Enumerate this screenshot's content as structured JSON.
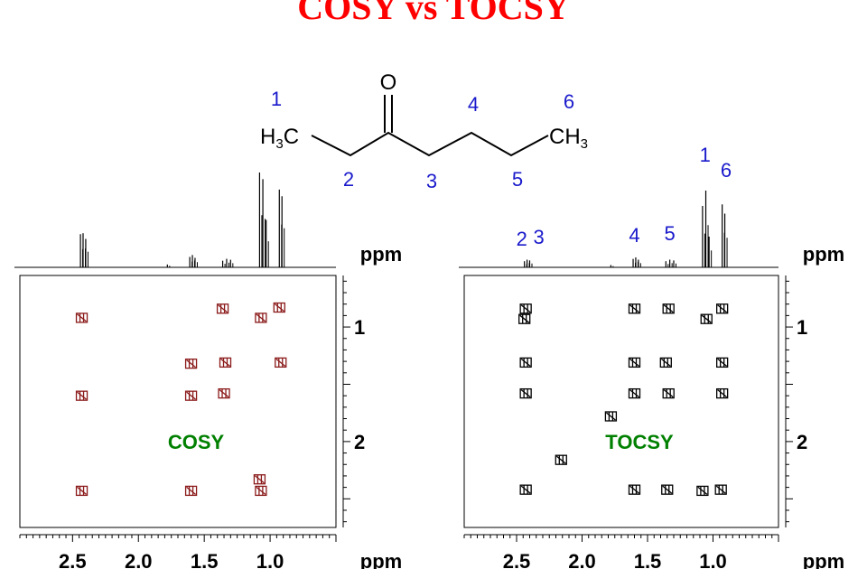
{
  "title": "COSY vs TOCSY",
  "molecule": {
    "atoms": {
      "oxygen": "O",
      "left_methyl": "H3C",
      "right_methyl": "CH3"
    },
    "position_numbers": [
      "1",
      "2",
      "3",
      "4",
      "5",
      "6"
    ]
  },
  "colors": {
    "title": "#ff0000",
    "position_numbers": "#1a1acc",
    "plot_labels": "#008000",
    "cosy_peaks": "#8b1a1a",
    "tocsy_peaks": "#000000"
  },
  "chart_data": [
    {
      "type": "scatter",
      "label": "COSY",
      "xlabel": "ppm",
      "ylabel": "ppm",
      "xticks": [
        "2.5",
        "2.0",
        "1.5",
        "1.0"
      ],
      "yticks": [
        "1",
        "2"
      ],
      "xlim": [
        2.9,
        0.5
      ],
      "ylim": [
        0.55,
        2.75
      ],
      "projection_peaks": [
        {
          "ppm": 2.44,
          "h": 0.35
        },
        {
          "ppm": 2.42,
          "h": 0.36
        },
        {
          "ppm": 2.4,
          "h": 0.3
        },
        {
          "ppm": 1.78,
          "h": 0.03
        },
        {
          "ppm": 1.61,
          "h": 0.11
        },
        {
          "ppm": 1.59,
          "h": 0.13
        },
        {
          "ppm": 1.57,
          "h": 0.1
        },
        {
          "ppm": 1.36,
          "h": 0.07
        },
        {
          "ppm": 1.33,
          "h": 0.09
        },
        {
          "ppm": 1.3,
          "h": 0.08
        },
        {
          "ppm": 1.08,
          "h": 1.0
        },
        {
          "ppm": 1.055,
          "h": 0.93
        },
        {
          "ppm": 1.03,
          "h": 0.5
        },
        {
          "ppm": 0.93,
          "h": 0.82
        },
        {
          "ppm": 0.91,
          "h": 0.75
        }
      ],
      "cross_peaks": [
        {
          "x": 2.43,
          "y": 0.92
        },
        {
          "x": 2.43,
          "y": 1.6
        },
        {
          "x": 2.43,
          "y": 2.43
        },
        {
          "x": 1.6,
          "y": 1.32
        },
        {
          "x": 1.6,
          "y": 1.6
        },
        {
          "x": 1.6,
          "y": 2.43
        },
        {
          "x": 1.36,
          "y": 0.84
        },
        {
          "x": 1.34,
          "y": 1.31
        },
        {
          "x": 1.35,
          "y": 1.58
        },
        {
          "x": 1.07,
          "y": 0.92
        },
        {
          "x": 1.07,
          "y": 2.43
        },
        {
          "x": 1.08,
          "y": 2.33
        },
        {
          "x": 0.93,
          "y": 0.83
        },
        {
          "x": 0.92,
          "y": 1.31
        }
      ]
    },
    {
      "type": "scatter",
      "label": "TOCSY",
      "xlabel": "ppm",
      "ylabel": "ppm",
      "xticks": [
        "2.5",
        "2.0",
        "1.5",
        "1.0"
      ],
      "yticks": [
        "1",
        "2"
      ],
      "xlim": [
        2.9,
        0.5
      ],
      "ylim": [
        0.55,
        2.75
      ],
      "peak_labels": [
        {
          "ppm": 2.46,
          "text": "2"
        },
        {
          "ppm": 2.33,
          "text": "3"
        },
        {
          "ppm": 1.6,
          "text": "4"
        },
        {
          "ppm": 1.33,
          "text": "5"
        },
        {
          "ppm": 1.06,
          "text": "1"
        },
        {
          "ppm": 0.9,
          "text": "6"
        }
      ],
      "projection_peaks": [
        {
          "ppm": 2.44,
          "h": 0.08
        },
        {
          "ppm": 2.42,
          "h": 0.1
        },
        {
          "ppm": 2.4,
          "h": 0.09
        },
        {
          "ppm": 1.78,
          "h": 0.03
        },
        {
          "ppm": 1.61,
          "h": 0.11
        },
        {
          "ppm": 1.59,
          "h": 0.13
        },
        {
          "ppm": 1.57,
          "h": 0.1
        },
        {
          "ppm": 1.36,
          "h": 0.08
        },
        {
          "ppm": 1.33,
          "h": 0.1
        },
        {
          "ppm": 1.3,
          "h": 0.09
        },
        {
          "ppm": 1.08,
          "h": 0.8
        },
        {
          "ppm": 1.055,
          "h": 1.0
        },
        {
          "ppm": 1.03,
          "h": 0.4
        },
        {
          "ppm": 0.93,
          "h": 0.82
        },
        {
          "ppm": 0.91,
          "h": 0.7
        }
      ],
      "cross_peaks": [
        {
          "x": 2.43,
          "y": 0.84
        },
        {
          "x": 2.44,
          "y": 0.93
        },
        {
          "x": 1.6,
          "y": 0.84
        },
        {
          "x": 1.34,
          "y": 0.84
        },
        {
          "x": 0.93,
          "y": 0.84
        },
        {
          "x": 1.05,
          "y": 0.93
        },
        {
          "x": 2.43,
          "y": 1.31
        },
        {
          "x": 1.6,
          "y": 1.31
        },
        {
          "x": 1.36,
          "y": 1.31
        },
        {
          "x": 0.93,
          "y": 1.31
        },
        {
          "x": 2.43,
          "y": 1.58
        },
        {
          "x": 1.6,
          "y": 1.58
        },
        {
          "x": 1.34,
          "y": 1.58
        },
        {
          "x": 0.93,
          "y": 1.58
        },
        {
          "x": 1.78,
          "y": 1.78
        },
        {
          "x": 2.16,
          "y": 2.16
        },
        {
          "x": 2.43,
          "y": 2.42
        },
        {
          "x": 1.6,
          "y": 2.42
        },
        {
          "x": 1.35,
          "y": 2.42
        },
        {
          "x": 1.08,
          "y": 2.43
        },
        {
          "x": 0.94,
          "y": 2.42
        }
      ]
    }
  ]
}
